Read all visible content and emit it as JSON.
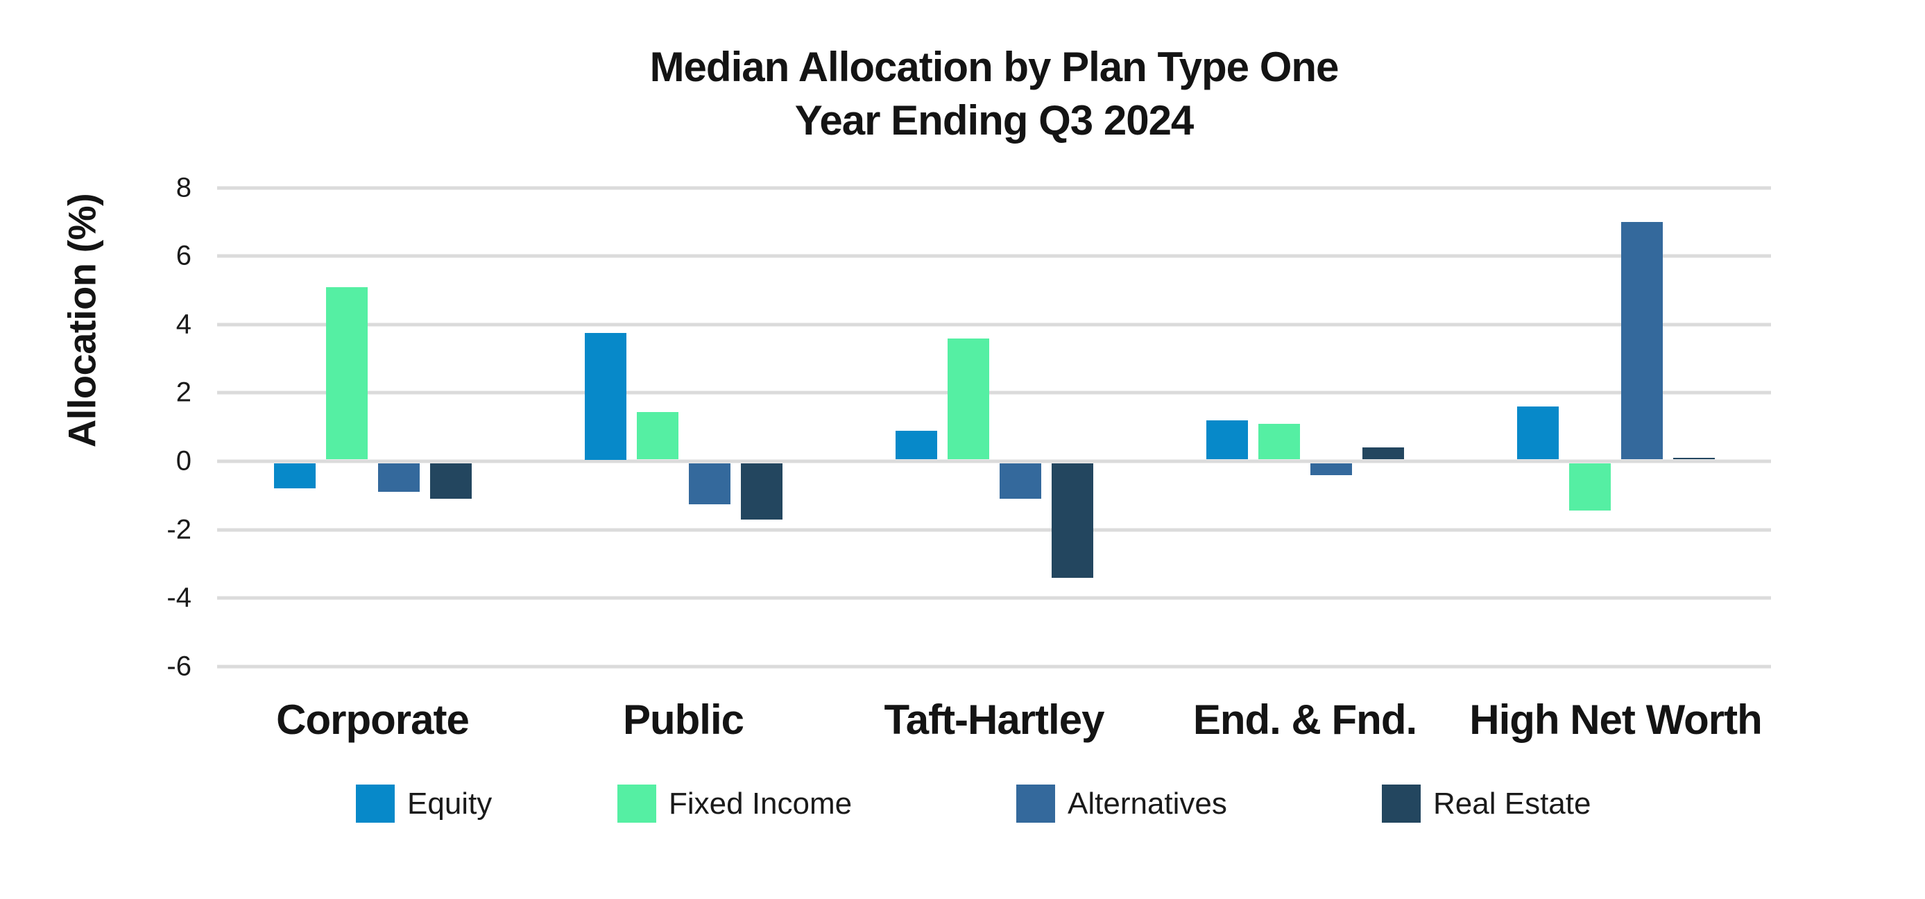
{
  "title": {
    "line1": "Median Allocation by Plan Type One",
    "line2": "Year Ending Q3 2024"
  },
  "chart_data": {
    "type": "bar",
    "title": "Median Allocation by Plan Type One Year Ending Q3 2024",
    "xlabel": "",
    "ylabel": "Allocation (%)",
    "ylim": [
      -6,
      8
    ],
    "yticks": [
      8,
      6,
      4,
      2,
      0,
      -2,
      -4,
      -6
    ],
    "grid": true,
    "legend_position": "bottom",
    "categories": [
      "Corporate",
      "Public",
      "Taft-Hartley",
      "End. & Fnd.",
      "High Net Worth"
    ],
    "series": [
      {
        "name": "Equity",
        "color": "#0789C9",
        "values": [
          -0.8,
          3.75,
          0.9,
          1.2,
          1.6
        ]
      },
      {
        "name": "Fixed Income",
        "color": "#55EFA3",
        "values": [
          5.1,
          1.45,
          3.6,
          1.1,
          -1.45
        ]
      },
      {
        "name": "Alternatives",
        "color": "#34699C",
        "values": [
          -0.9,
          -1.25,
          -1.1,
          -0.4,
          7.0
        ]
      },
      {
        "name": "Real Estate",
        "color": "#23465F",
        "values": [
          -1.1,
          -1.7,
          -3.4,
          0.4,
          0.1
        ]
      }
    ]
  },
  "style_colors": {
    "gridline": "#dbdbdb",
    "text": "#141414"
  }
}
